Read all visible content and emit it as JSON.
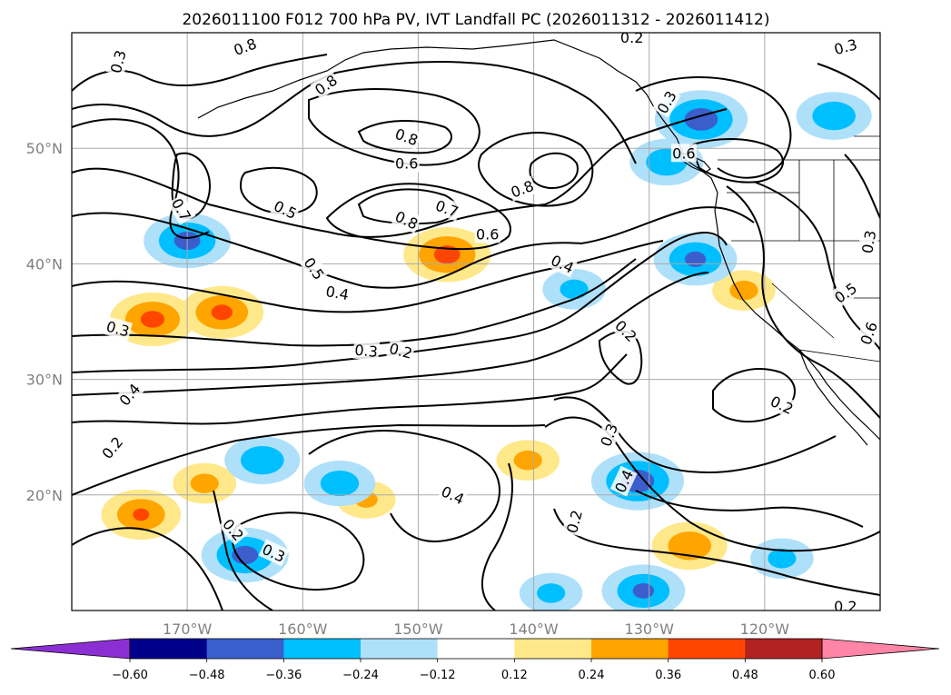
{
  "chart_data": {
    "type": "contour_map",
    "title": "2026011100 F012 700 hPa PV, IVT Landfall PC (2026011312 - 2026011412)",
    "lon_range": [
      -180,
      -110
    ],
    "lat_range": [
      10,
      60
    ],
    "lon_ticks": [
      -170,
      -160,
      -150,
      -140,
      -130,
      -120
    ],
    "lon_tick_labels": [
      "170°W",
      "160°W",
      "150°W",
      "140°W",
      "130°W",
      "120°W"
    ],
    "lat_ticks": [
      20,
      30,
      40,
      50
    ],
    "lat_tick_labels": [
      "20°N",
      "30°N",
      "40°N",
      "50°N"
    ],
    "colorbar": {
      "levels": [
        "−0.60",
        "−0.48",
        "−0.36",
        "−0.24",
        "−0.12",
        "0.12",
        "0.24",
        "0.36",
        "0.48",
        "0.60"
      ],
      "colors": [
        "#8c2fd2",
        "#00008b",
        "#3a5fcd",
        "#00bfff",
        "#afe0fa",
        "#ffffff",
        "#ffe88a",
        "#ffa500",
        "#ff4500",
        "#b22222",
        "#ff85a6"
      ]
    },
    "contour_labels": [
      {
        "text": "0.3",
        "lon": -176.0,
        "lat": 57.5,
        "rot": -75
      },
      {
        "text": "0.8",
        "lon": -165.0,
        "lat": 58.8,
        "rot": -20
      },
      {
        "text": "0.8",
        "lon": -158.0,
        "lat": 55.5,
        "rot": -35
      },
      {
        "text": "0.2",
        "lon": -131.5,
        "lat": 59.6,
        "rot": 0
      },
      {
        "text": "0.3",
        "lon": -113.0,
        "lat": 58.8,
        "rot": -15
      },
      {
        "text": "0.3",
        "lon": -128.5,
        "lat": 54.0,
        "rot": -60
      },
      {
        "text": "0.8",
        "lon": -151.0,
        "lat": 51.0,
        "rot": 20
      },
      {
        "text": "0.6",
        "lon": -151.0,
        "lat": 48.7,
        "rot": 0
      },
      {
        "text": "0.6",
        "lon": -127.0,
        "lat": 49.6,
        "rot": 0
      },
      {
        "text": "0.8",
        "lon": -141.0,
        "lat": 46.5,
        "rot": -20
      },
      {
        "text": "0.7",
        "lon": -170.5,
        "lat": 44.7,
        "rot": 60
      },
      {
        "text": "0.5",
        "lon": -161.5,
        "lat": 44.7,
        "rot": 25
      },
      {
        "text": "0.8",
        "lon": -151.0,
        "lat": 43.8,
        "rot": 25
      },
      {
        "text": "0.7",
        "lon": -147.5,
        "lat": 44.8,
        "rot": 20
      },
      {
        "text": "0.6",
        "lon": -144.0,
        "lat": 42.6,
        "rot": 0
      },
      {
        "text": "0.4",
        "lon": -137.5,
        "lat": 40.0,
        "rot": 25
      },
      {
        "text": "0.5",
        "lon": -159.0,
        "lat": 39.6,
        "rot": 55
      },
      {
        "text": "0.4",
        "lon": -157.0,
        "lat": 37.5,
        "rot": 10
      },
      {
        "text": "0.3",
        "lon": -176.0,
        "lat": 34.4,
        "rot": 15
      },
      {
        "text": "0.3",
        "lon": -154.5,
        "lat": 32.5,
        "rot": 5
      },
      {
        "text": "0.2",
        "lon": -151.5,
        "lat": 32.5,
        "rot": 15
      },
      {
        "text": "0.2",
        "lon": -132.0,
        "lat": 34.2,
        "rot": 45
      },
      {
        "text": "0.5",
        "lon": -113.0,
        "lat": 37.5,
        "rot": -35
      },
      {
        "text": "0.6",
        "lon": -111.0,
        "lat": 34.0,
        "rot": -70
      },
      {
        "text": "0.3",
        "lon": -111.0,
        "lat": 41.9,
        "rot": -80
      },
      {
        "text": "0.4",
        "lon": -175.0,
        "lat": 28.7,
        "rot": -50
      },
      {
        "text": "0.2",
        "lon": -176.5,
        "lat": 24.1,
        "rot": -50
      },
      {
        "text": "0.2",
        "lon": -118.5,
        "lat": 27.8,
        "rot": 25
      },
      {
        "text": "0.3",
        "lon": -133.5,
        "lat": 25.2,
        "rot": -70
      },
      {
        "text": "0.4",
        "lon": -132.2,
        "lat": 21.2,
        "rot": -65
      },
      {
        "text": "0.4",
        "lon": -147.0,
        "lat": 20.0,
        "rot": 25
      },
      {
        "text": "0.2",
        "lon": -136.5,
        "lat": 17.7,
        "rot": -75
      },
      {
        "text": "0.2",
        "lon": -166.0,
        "lat": 17.0,
        "rot": 50
      },
      {
        "text": "0.3",
        "lon": -162.5,
        "lat": 15.0,
        "rot": 25
      },
      {
        "text": "0.2",
        "lon": -113.0,
        "lat": 10.4,
        "rot": 0
      }
    ],
    "positive_anomalies": [
      {
        "lon": -173.0,
        "lat": 35.2,
        "value": 0.41
      },
      {
        "lon": -167.0,
        "lat": 35.8,
        "value": 0.4
      },
      {
        "lon": -147.5,
        "lat": 40.8,
        "value": 0.42
      },
      {
        "lon": -174.0,
        "lat": 18.3,
        "value": 0.38
      },
      {
        "lon": -168.5,
        "lat": 21.0,
        "value": 0.3
      },
      {
        "lon": -140.5,
        "lat": 23.0,
        "value": 0.3
      },
      {
        "lon": -154.5,
        "lat": 19.6,
        "value": 0.28
      },
      {
        "lon": -126.5,
        "lat": 15.6,
        "value": 0.36
      },
      {
        "lon": -121.8,
        "lat": 37.7,
        "value": 0.3
      }
    ],
    "negative_anomalies": [
      {
        "lon": -170.0,
        "lat": 42.0,
        "value": -0.42
      },
      {
        "lon": -125.5,
        "lat": 52.5,
        "value": -0.45
      },
      {
        "lon": -114.0,
        "lat": 52.8,
        "value": -0.36
      },
      {
        "lon": -128.5,
        "lat": 48.8,
        "value": -0.35
      },
      {
        "lon": -126.0,
        "lat": 40.4,
        "value": -0.4
      },
      {
        "lon": -136.5,
        "lat": 37.8,
        "value": -0.3
      },
      {
        "lon": -131.0,
        "lat": 21.2,
        "value": -0.45
      },
      {
        "lon": -165.0,
        "lat": 14.8,
        "value": -0.42
      },
      {
        "lon": -163.5,
        "lat": 23.0,
        "value": -0.36
      },
      {
        "lon": -156.8,
        "lat": 21.0,
        "value": -0.34
      },
      {
        "lon": -130.5,
        "lat": 11.7,
        "value": -0.4
      },
      {
        "lon": -138.5,
        "lat": 11.5,
        "value": -0.3
      },
      {
        "lon": -118.5,
        "lat": 14.5,
        "value": -0.3
      }
    ]
  }
}
